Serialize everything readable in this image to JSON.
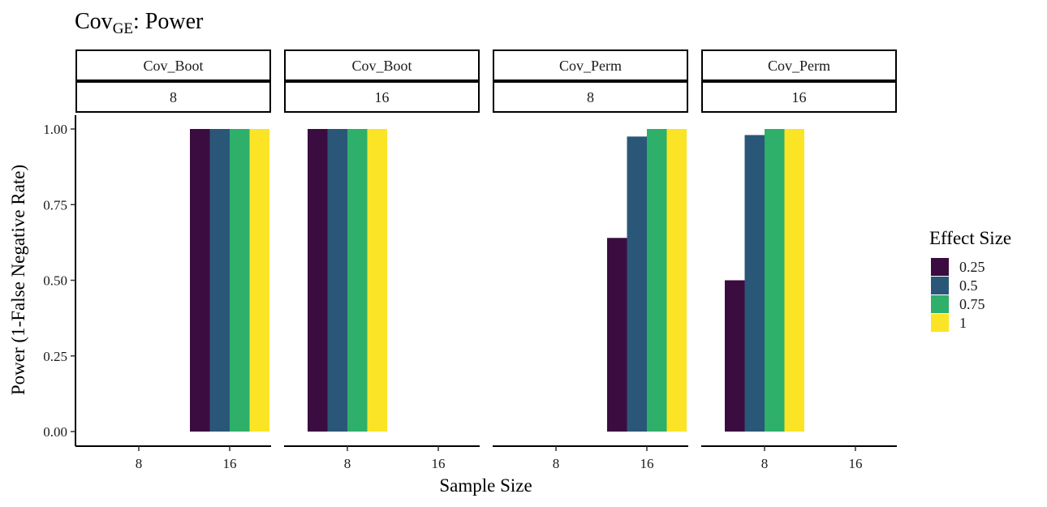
{
  "chart_data": {
    "type": "bar",
    "title": "Cov",
    "title_subscript": "GE",
    "title_suffix": ": Power",
    "xlabel": "Sample Size",
    "ylabel": "Power (1-False Negative Rate)",
    "ylim": [
      0,
      1
    ],
    "yticks": [
      "0.00",
      "0.25",
      "0.50",
      "0.75",
      "1.00"
    ],
    "ytick_values": [
      0,
      0.25,
      0.5,
      0.75,
      1
    ],
    "categories": [
      "8",
      "16"
    ],
    "legend": {
      "title": "Effect Size",
      "position": "right",
      "entries": [
        {
          "label": "0.25",
          "color": "#3b0c40"
        },
        {
          "label": "0.5",
          "color": "#2a5778"
        },
        {
          "label": "0.75",
          "color": "#2eaf6a"
        },
        {
          "label": "1",
          "color": "#fbe425"
        }
      ]
    },
    "panels": [
      {
        "strip_top": "Cov_Boot",
        "strip_bottom": "8",
        "series": [
          {
            "category": "16",
            "values": [
              1.0,
              1.0,
              1.0,
              1.0
            ]
          }
        ]
      },
      {
        "strip_top": "Cov_Boot",
        "strip_bottom": "16",
        "series": [
          {
            "category": "8",
            "values": [
              1.0,
              1.0,
              1.0,
              1.0
            ]
          }
        ]
      },
      {
        "strip_top": "Cov_Perm",
        "strip_bottom": "8",
        "series": [
          {
            "category": "16",
            "values": [
              0.64,
              0.975,
              1.0,
              1.0
            ]
          }
        ]
      },
      {
        "strip_top": "Cov_Perm",
        "strip_bottom": "16",
        "series": [
          {
            "category": "8",
            "values": [
              0.5,
              0.98,
              1.0,
              1.0
            ]
          }
        ]
      }
    ],
    "grid": false
  }
}
